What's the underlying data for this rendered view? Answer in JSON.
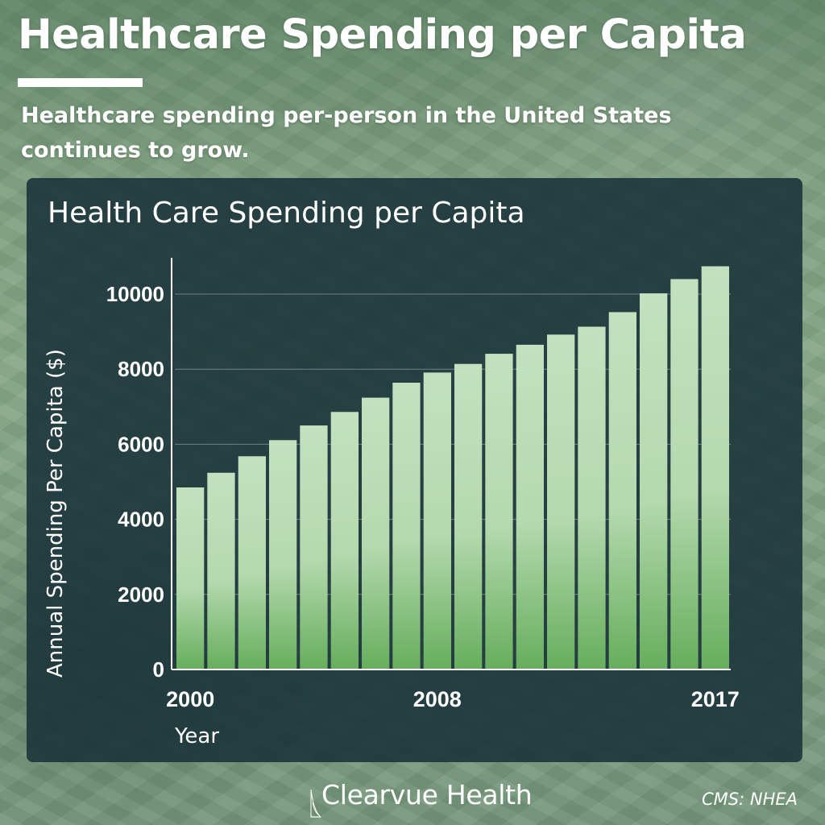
{
  "header": {
    "title": "Healthcare Spending per Capita",
    "subtitle": "Healthcare spending per-person in the United States continues to grow."
  },
  "chart_data": {
    "type": "bar",
    "title": "Health Care Spending per Capita",
    "xlabel": "Year",
    "ylabel": "Annual Spending Per Capita ($)",
    "categories": [
      "2000",
      "2001",
      "2002",
      "2003",
      "2004",
      "2005",
      "2006",
      "2007",
      "2008",
      "2009",
      "2010",
      "2011",
      "2012",
      "2013",
      "2014",
      "2015",
      "2016",
      "2017"
    ],
    "values": [
      4850,
      5240,
      5680,
      6110,
      6500,
      6860,
      7240,
      7640,
      7910,
      8140,
      8410,
      8650,
      8920,
      9130,
      9520,
      10020,
      10400,
      10740
    ],
    "x_tick_labels": [
      "2000",
      "2008",
      "2017"
    ],
    "y_ticks": [
      0,
      2000,
      4000,
      6000,
      8000,
      10000
    ],
    "ylim": [
      0,
      11000
    ],
    "grid": true,
    "bar_color_top": "#c3e1bf",
    "bar_color_bottom": "#66ae5c"
  },
  "footer": {
    "brand": "Clearvue Health",
    "source": "CMS: NHEA"
  },
  "colors": {
    "panel": "#183038",
    "text": "#ffffff",
    "axis": "#ffffff"
  }
}
